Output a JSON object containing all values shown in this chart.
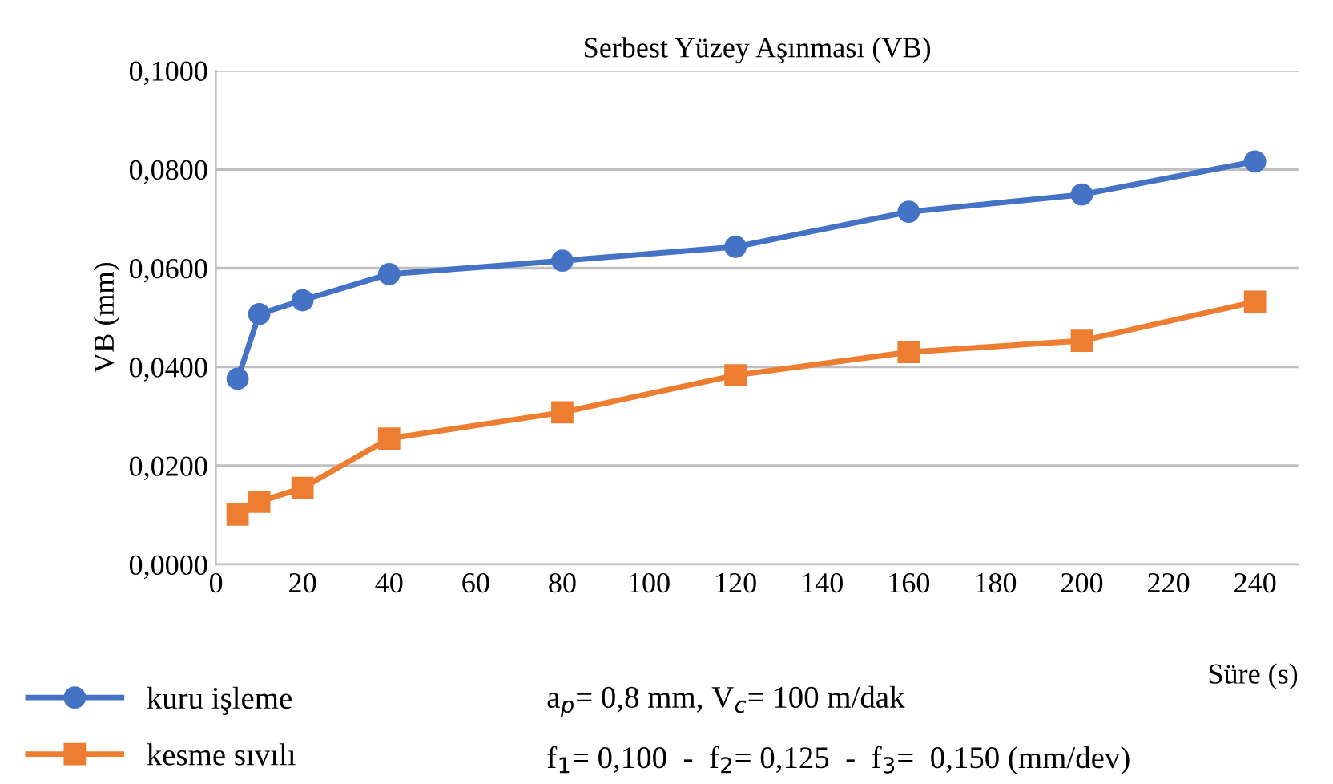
{
  "chart_data": {
    "type": "line",
    "title": "Serbest Yüzey Aşınması (VB)",
    "xlabel": "Süre (s)",
    "ylabel": "VB (mm)",
    "x": [
      5,
      10,
      20,
      40,
      80,
      120,
      160,
      200,
      240
    ],
    "series": [
      {
        "name": "kuru işleme",
        "color": "#4472c4",
        "marker": "circle",
        "values": [
          0.0376,
          0.0507,
          0.0535,
          0.0588,
          0.0615,
          0.0643,
          0.0714,
          0.0749,
          0.0816
        ]
      },
      {
        "name": "kesme sıvılı",
        "color": "#ed7d31",
        "marker": "square",
        "values": [
          0.0101,
          0.0127,
          0.0155,
          0.0255,
          0.0308,
          0.0383,
          0.043,
          0.0453,
          0.0532
        ]
      }
    ],
    "xlim": [
      0,
      250
    ],
    "xticks": [
      0,
      20,
      40,
      60,
      80,
      100,
      120,
      140,
      160,
      180,
      200,
      220,
      240
    ],
    "ylim": [
      0,
      0.1
    ],
    "yticks": [
      {
        "value": 0,
        "label": "0,0000"
      },
      {
        "value": 0.02,
        "label": "0,0200"
      },
      {
        "value": 0.04,
        "label": "0,0400"
      },
      {
        "value": 0.06,
        "label": "0,0600"
      },
      {
        "value": 0.08,
        "label": "0,0800"
      },
      {
        "value": 0.1,
        "label": "0,1000"
      }
    ],
    "grid": "y",
    "legend": "bottom",
    "line_style": "solid",
    "annotations": [
      "a$_{p}$= 0,8 mm, V$_{c}$= 100 m/dak",
      "f$_{1}$= 0,100  -  f$_{2}$= 0,125  -  f$_{3}$=  0,150 (mm/dev)"
    ]
  }
}
